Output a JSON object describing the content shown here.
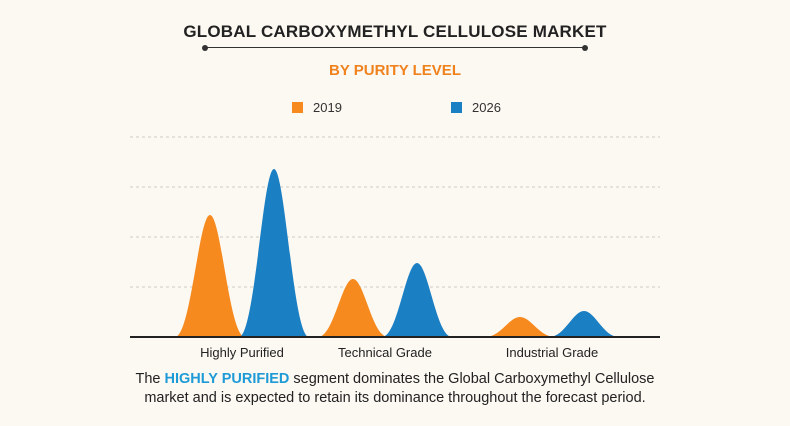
{
  "chart_data": {
    "type": "area",
    "title": "GLOBAL CARBOXYMETHYL CELLULOSE MARKET",
    "subtitle": "BY PURITY LEVEL",
    "categories": [
      "Highly Purified",
      "Technical Grade",
      "Industrial Grade"
    ],
    "series": [
      {
        "name": "2019",
        "color": "#f68a1f",
        "values": [
          122,
          58,
          20
        ]
      },
      {
        "name": "2026",
        "color": "#1b7fc4",
        "values": [
          168,
          74,
          26
        ]
      }
    ],
    "ylim": [
      0,
      200
    ],
    "grid": true,
    "legend_position": "top-center"
  },
  "footer": {
    "pre": "The ",
    "highlight": "HIGHLY PURIFIED",
    "post_line1": " segment dominates the Global Carboxymethyl Cellulose",
    "line2": "market and is expected to retain its dominance throughout the forecast period."
  }
}
